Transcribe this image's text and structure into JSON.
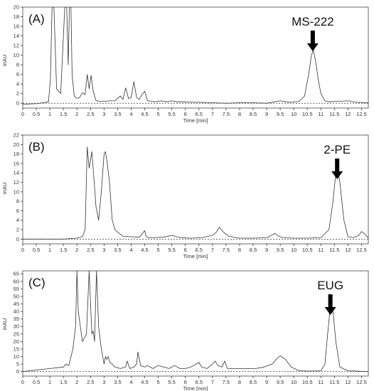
{
  "chart_data": [
    {
      "type": "line",
      "panel_label": "(A)",
      "annotation": "MS-222",
      "annotation_x": 10.7,
      "xlabel": "Time [min]",
      "ylabel": "mAU",
      "xlim": [
        0,
        12.75
      ],
      "ylim": [
        -1,
        20
      ],
      "xticks": [
        0,
        0.5,
        1,
        1.5,
        2,
        2.5,
        3,
        3.5,
        4,
        4.5,
        5,
        5.5,
        6,
        6.5,
        7,
        7.5,
        8,
        8.5,
        9,
        9.5,
        10,
        10.5,
        11,
        11.5,
        12,
        12.5
      ],
      "yticks": [
        0,
        2,
        4,
        6,
        8,
        10,
        12,
        14,
        16,
        18,
        20
      ],
      "x": [
        0,
        0.5,
        0.95,
        1.02,
        1.08,
        1.15,
        1.25,
        1.4,
        1.55,
        1.62,
        1.68,
        1.72,
        1.78,
        1.82,
        1.9,
        2.0,
        2.1,
        2.2,
        2.3,
        2.38,
        2.45,
        2.52,
        2.6,
        2.7,
        2.8,
        3.0,
        3.2,
        3.4,
        3.6,
        3.7,
        3.8,
        3.9,
        4.0,
        4.1,
        4.2,
        4.3,
        4.4,
        4.5,
        4.6,
        4.7,
        4.9,
        5.1,
        5.3,
        5.5,
        5.7,
        5.9,
        6.2,
        6.5,
        7.0,
        7.5,
        8.0,
        8.5,
        9.0,
        9.5,
        9.7,
        9.9,
        10.2,
        10.4,
        10.55,
        10.65,
        10.72,
        10.8,
        10.9,
        11.0,
        11.15,
        11.3,
        11.6,
        12.0,
        12.3,
        12.75
      ],
      "y": [
        -0.2,
        -0.1,
        0.3,
        5,
        20,
        20,
        3,
        2,
        20,
        20,
        8,
        20,
        20,
        6,
        1.5,
        1,
        1.2,
        2.2,
        1.8,
        6,
        3,
        5.8,
        2.5,
        0.6,
        0.4,
        0.4,
        0.5,
        0.5,
        1.5,
        0.8,
        3.2,
        1,
        1.2,
        4.5,
        1.2,
        0.8,
        1.8,
        2.5,
        0.6,
        0.4,
        0.3,
        0.5,
        0.3,
        0.5,
        0.3,
        0.3,
        0.2,
        0.2,
        0.1,
        0,
        0.1,
        0.1,
        0,
        0.5,
        0.3,
        0.2,
        0.4,
        1.5,
        6,
        10,
        11,
        9,
        5,
        2,
        0.5,
        0.3,
        0.4,
        0.5,
        0.2,
        0.1
      ]
    },
    {
      "type": "line",
      "panel_label": "(B)",
      "annotation": "2-PE",
      "annotation_x": 11.6,
      "xlabel": "Time [min]",
      "ylabel": "mAU",
      "xlim": [
        0,
        12.75
      ],
      "ylim": [
        -1,
        22
      ],
      "xticks": [
        0,
        0.5,
        1,
        1.5,
        2,
        2.5,
        3,
        3.5,
        4,
        4.5,
        5,
        5.5,
        6,
        6.5,
        7,
        7.5,
        8,
        8.5,
        9,
        9.5,
        10,
        10.5,
        11,
        11.5,
        12,
        12.5
      ],
      "yticks": [
        0,
        2,
        4,
        6,
        8,
        10,
        12,
        14,
        16,
        18,
        20,
        22
      ],
      "x": [
        0,
        1,
        1.5,
        2.0,
        2.2,
        2.3,
        2.38,
        2.45,
        2.55,
        2.65,
        2.7,
        2.8,
        2.9,
        3.0,
        3.05,
        3.12,
        3.2,
        3.3,
        3.4,
        3.5,
        3.7,
        4.0,
        4.3,
        4.5,
        4.55,
        4.62,
        4.8,
        5.2,
        5.5,
        5.8,
        6.2,
        6.6,
        7.0,
        7.15,
        7.25,
        7.4,
        7.6,
        8.0,
        8.5,
        9.0,
        9.3,
        9.45,
        9.6,
        10.0,
        10.5,
        11.0,
        11.3,
        11.45,
        11.55,
        11.62,
        11.7,
        11.85,
        12.0,
        12.2,
        12.4,
        12.5,
        12.6,
        12.75
      ],
      "y": [
        0,
        0,
        0,
        0.2,
        0.5,
        2,
        19.5,
        15,
        18.5,
        11,
        7,
        4,
        10,
        18,
        18.5,
        16,
        12,
        4,
        2,
        1.5,
        0.6,
        0.5,
        0.4,
        1.8,
        0.6,
        0.3,
        0.3,
        0.4,
        0.8,
        0.3,
        0.2,
        0.3,
        0.8,
        1.5,
        2.5,
        1.5,
        0.6,
        0.2,
        0.2,
        0.3,
        1.2,
        0.6,
        0.3,
        0.2,
        0.2,
        0.3,
        2,
        8,
        14,
        15,
        12,
        4,
        0.5,
        0.3,
        0.8,
        1.6,
        1.2,
        0.2
      ]
    },
    {
      "type": "line",
      "panel_label": "(C)",
      "annotation": "EUG",
      "annotation_x": 11.35,
      "xlabel": "Time [min]",
      "ylabel": "mAU",
      "xlim": [
        0,
        12.75
      ],
      "ylim": [
        -3,
        67
      ],
      "xticks": [
        0,
        0.5,
        1,
        1.5,
        2,
        2.5,
        3,
        3.5,
        4,
        4.5,
        5,
        5.5,
        6,
        6.5,
        7,
        7.5,
        8,
        8.5,
        9,
        9.5,
        10,
        10.5,
        11,
        11.5,
        12,
        12.5
      ],
      "yticks": [
        0,
        5,
        10,
        15,
        20,
        25,
        30,
        35,
        40,
        45,
        50,
        55,
        60,
        65
      ],
      "x": [
        0,
        0.5,
        1.0,
        1.5,
        1.6,
        1.7,
        1.85,
        1.95,
        2.0,
        2.05,
        2.2,
        2.35,
        2.45,
        2.55,
        2.6,
        2.65,
        2.72,
        2.8,
        2.9,
        3.0,
        3.05,
        3.1,
        3.15,
        3.22,
        3.3,
        3.4,
        3.6,
        3.8,
        3.85,
        3.95,
        4.1,
        4.2,
        4.25,
        4.35,
        4.5,
        4.6,
        4.8,
        5.0,
        5.2,
        5.4,
        5.6,
        5.8,
        6.0,
        6.2,
        6.4,
        6.5,
        6.6,
        6.8,
        7.0,
        7.1,
        7.2,
        7.35,
        7.45,
        7.55,
        7.8,
        8.2,
        8.6,
        8.9,
        9.2,
        9.4,
        9.5,
        9.7,
        9.9,
        10.2,
        10.6,
        11.0,
        11.15,
        11.25,
        11.35,
        11.45,
        11.55,
        11.7,
        12.0,
        12.4,
        12.75
      ],
      "y": [
        0,
        1,
        2,
        3,
        5,
        4,
        15,
        30,
        67,
        40,
        20,
        25,
        67,
        25,
        27,
        20,
        67,
        30,
        15,
        5,
        10,
        8,
        10,
        6,
        5,
        3,
        2,
        3,
        7,
        2,
        3,
        5,
        13,
        4,
        3,
        4,
        2,
        4,
        3,
        2,
        4,
        2,
        2,
        3,
        5,
        6,
        3,
        2,
        5,
        7,
        4,
        3,
        7,
        2,
        2,
        2,
        2,
        3,
        5,
        9,
        10.5,
        8,
        3,
        0.5,
        0.3,
        0.5,
        5,
        25,
        43,
        40,
        20,
        3,
        0.5,
        0.2,
        0
      ]
    }
  ]
}
